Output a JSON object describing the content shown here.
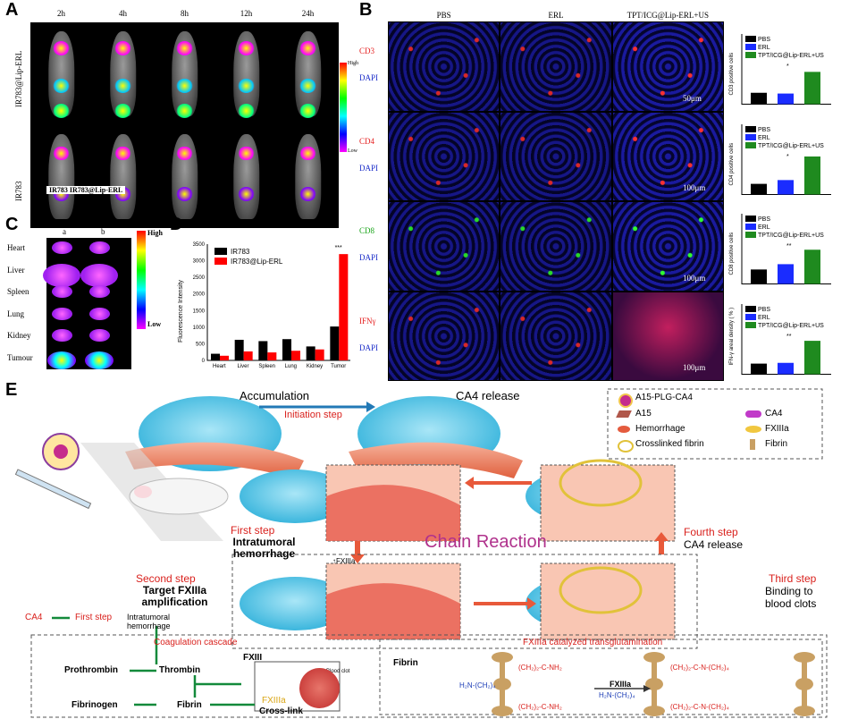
{
  "panels": {
    "A": "A",
    "B": "B",
    "C": "C",
    "D": "D",
    "E": "E"
  },
  "panelA": {
    "times": [
      "2h",
      "4h",
      "8h",
      "12h",
      "24h"
    ],
    "rows": [
      "IR783@Lip-ERL",
      "IR783"
    ],
    "legend_high": "High",
    "legend_low": "Low",
    "inset_label": "IR783  IR783@Lip-ERL"
  },
  "panelB": {
    "cols": [
      "PBS",
      "ERL",
      "TPT/ICG@Lip-ERL+US"
    ],
    "rows": [
      {
        "marker": "CD3",
        "dapi": "DAPI",
        "scale": "50μm"
      },
      {
        "marker": "CD4",
        "dapi": "DAPI",
        "scale": "100μm"
      },
      {
        "marker": "CD8",
        "dapi": "DAPI",
        "scale": "100μm"
      },
      {
        "marker": "IFNγ",
        "dapi": "DAPI",
        "scale": "100μm"
      }
    ],
    "bar_legend": [
      "PBS",
      "ERL",
      "TPT/ICG@Lip-ERL+US"
    ],
    "bar_colors": [
      "#000000",
      "#1a2cff",
      "#1f8a1f"
    ],
    "bar_ylabels": [
      "CD3 positive cells",
      "CD4 positive cells",
      "CD8 positive cells",
      "IFN-γ areal density ( % )"
    ],
    "bar_values": [
      [
        0.3,
        0.28,
        0.85
      ],
      [
        0.28,
        0.38,
        1.0
      ],
      [
        0.38,
        0.52,
        0.9
      ],
      [
        0.28,
        0.3,
        0.88
      ]
    ],
    "sig": [
      "*",
      "*",
      "**",
      "**"
    ]
  },
  "panelC": {
    "cols": [
      "a",
      "b"
    ],
    "organs": [
      "Heart",
      "Liver",
      "Spleen",
      "Lung",
      "Kidney",
      "Tumour"
    ],
    "legend_high": "High",
    "legend_low": "Low"
  },
  "chart_data": {
    "type": "bar",
    "categories": [
      "Heart",
      "Liver",
      "Spleen",
      "Lung",
      "Kidney",
      "Tumor"
    ],
    "series": [
      {
        "name": "IR783",
        "values": [
          200,
          620,
          580,
          640,
          420,
          1020
        ],
        "color": "#000000"
      },
      {
        "name": "IR783@Lip-ERL",
        "values": [
          140,
          270,
          240,
          290,
          330,
          3200
        ],
        "color": "#ff0000"
      }
    ],
    "errors": [
      [
        30,
        40,
        50,
        40,
        30,
        50
      ],
      [
        30,
        30,
        30,
        30,
        30,
        60
      ]
    ],
    "ylabel": "Fluorescence Intensity",
    "ylim": [
      0,
      3500
    ],
    "yticks": [
      0,
      500,
      1000,
      1500,
      2000,
      2500,
      3000,
      3500
    ],
    "annotation": "***",
    "legend": "top-left"
  },
  "panelE": {
    "accumulation": "Accumulation",
    "ca4_release": "CA4 release",
    "initiation": "Initiation step",
    "legend": [
      "A15-PLG-CA4",
      "A15",
      "CA4",
      "Hemorrhage",
      "FXIIIa",
      "Crosslinked fibrin",
      "Fibrin"
    ],
    "chain": "Chain Reaction",
    "first_step": "First step",
    "first_desc": "Intratumoral hemorrhage",
    "fourth_step": "Fourth step",
    "fourth_desc": "CA4 release",
    "second_step": "Second step",
    "second_desc": "Target FXIIIa amplification",
    "third_step": "Third step",
    "third_desc": "Binding to blood clots",
    "fxiiia_up": "↑FXIIIa",
    "flow": {
      "ca4": "CA4",
      "first": "First step",
      "intra": "Intratumoral hemorrhage",
      "cascade": "Coagulation cascade",
      "prothrombin": "Prothrombin",
      "thrombin": "Thrombin",
      "fxiii": "FXIII",
      "fibrinogen": "Fibrinogen",
      "fibrin": "Fibrin",
      "fxiiia": "FXIIIa",
      "crosslink": "Cross-link",
      "blood_clot": "Blood clot"
    },
    "trans": {
      "title": "FXIIIa catalyzed transglutamination",
      "fibrin": "Fibrin",
      "fxiiia": "FXIIIa",
      "chem1": "(CH₂)₂-C-NH₂",
      "chem2": "H₂N-(CH₂)₄",
      "chem3": "(CH₂)₂-C-N-(CH₂)₄",
      "chem4": "(CH₂)₂-C-NH₂",
      "o": "O"
    }
  }
}
